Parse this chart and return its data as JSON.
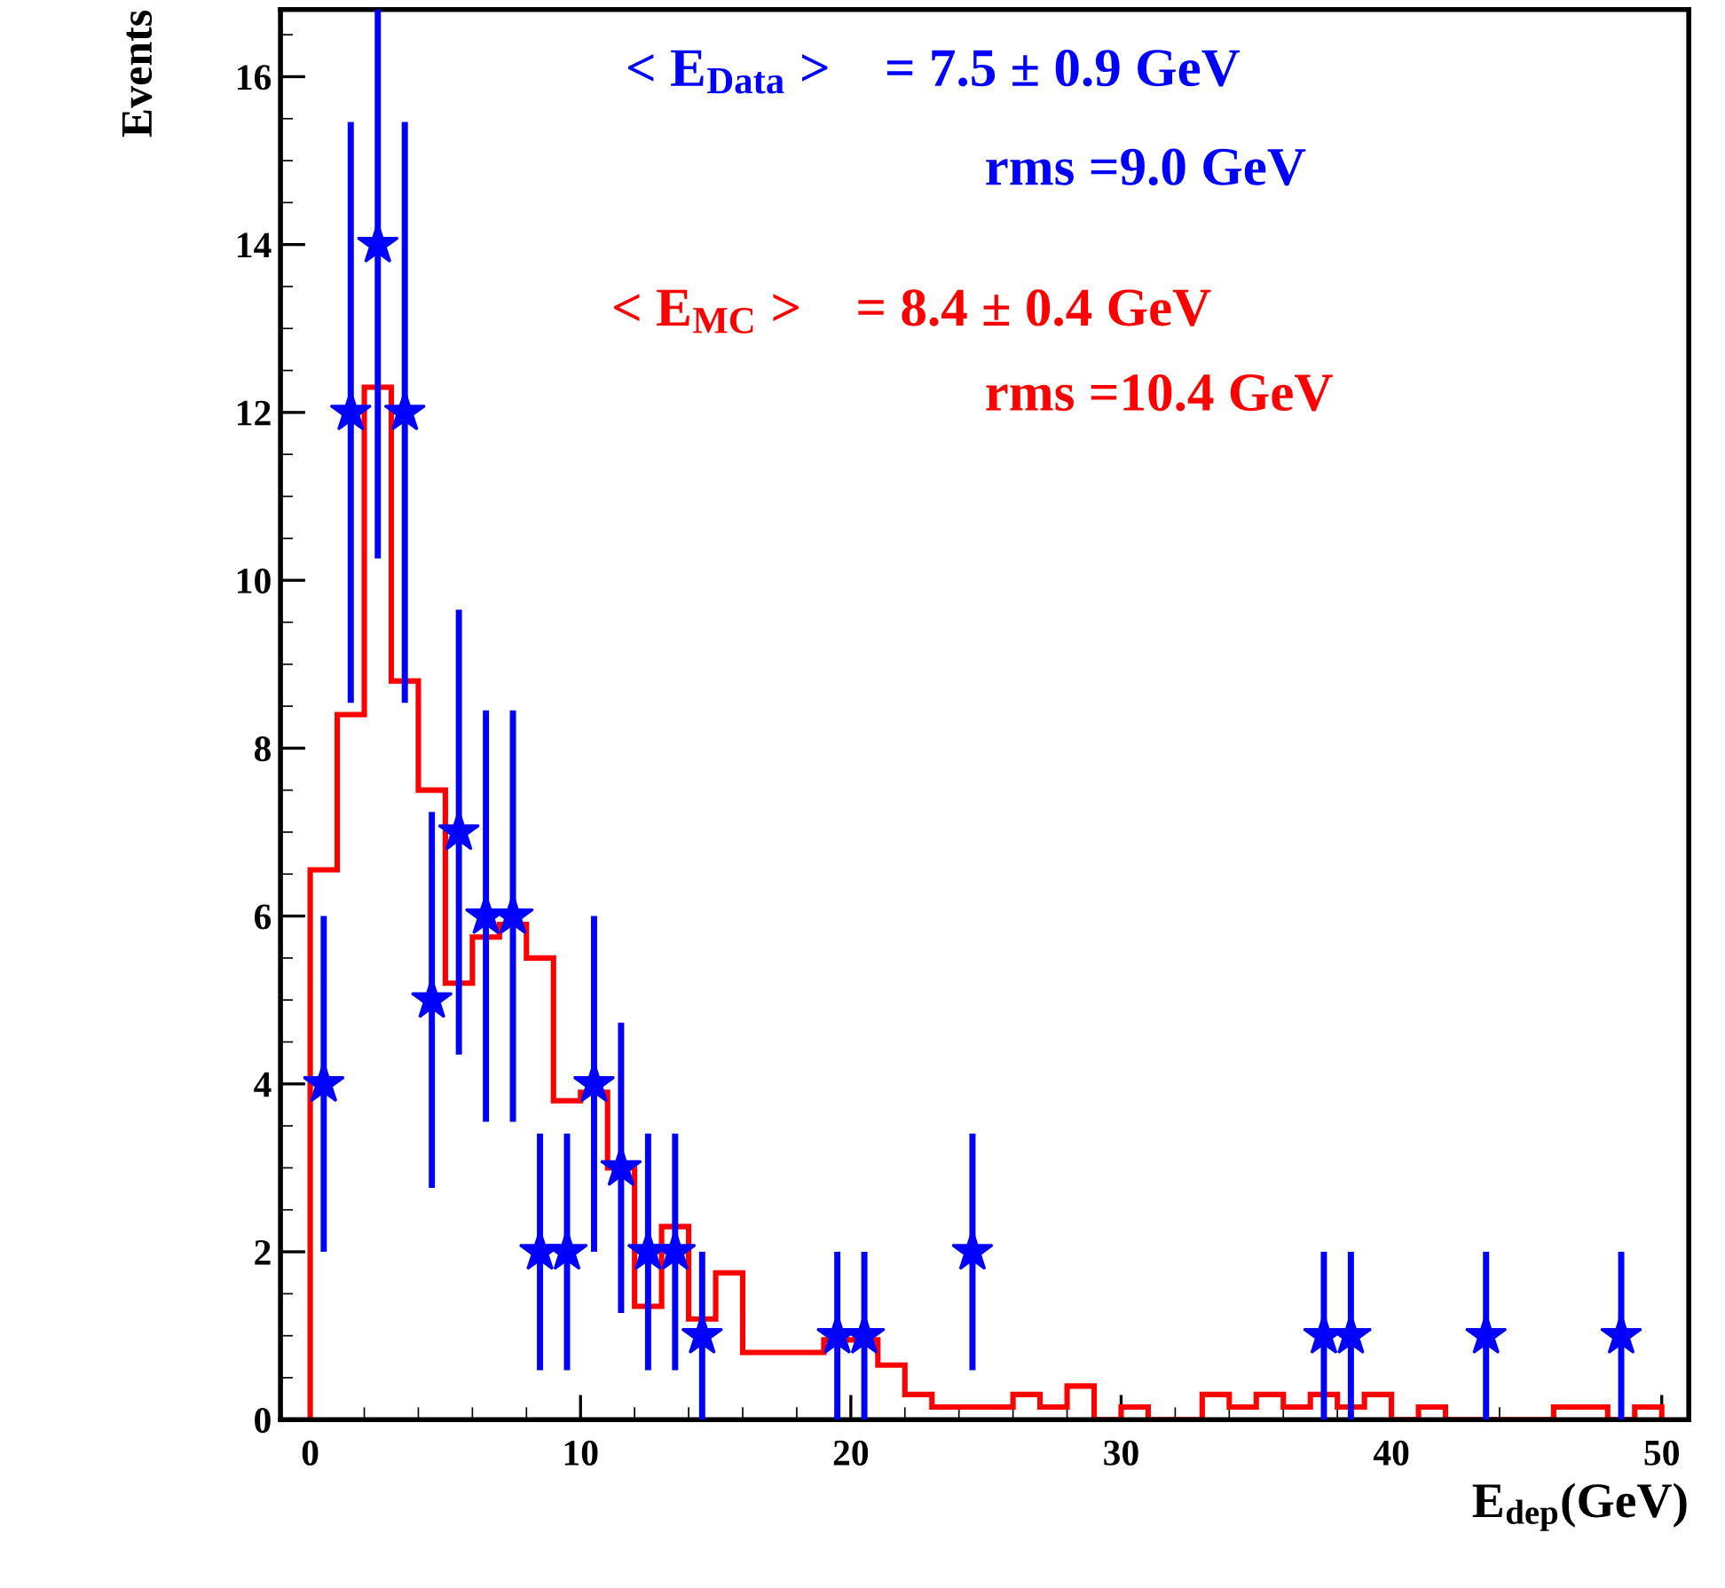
{
  "chart_data": {
    "type": "scatter",
    "xlabel": "E$_{dep}$(GeV)",
    "ylabel": "Events",
    "xlim": [
      -1.1,
      51
    ],
    "xticks": [
      0,
      10,
      20,
      30,
      40,
      50
    ],
    "ylim": [
      0,
      16.8
    ],
    "yticks": [
      0,
      2,
      4,
      6,
      8,
      10,
      12,
      14,
      16
    ],
    "marker": "star",
    "annotations": [
      "< E$_{Data}$ >    = 7.5 ± 0.9 GeV",
      "rms =9.0 GeV",
      "< E$_{MC}$ >    = 8.4 ± 0.4 GeV",
      "rms =10.4 GeV"
    ],
    "series": [
      {
        "color": "#0000ff",
        "x": [
          0.5,
          1.5,
          2.5,
          3.5,
          4.5,
          5.5,
          6.5,
          7.5,
          8.5,
          9.5,
          10.5,
          11.5,
          12.5,
          13.5,
          14.5,
          19.5,
          20.5,
          24.5,
          37.5,
          38.5,
          43.5,
          48.5
        ],
        "values": [
          4,
          12,
          14,
          12,
          5,
          7,
          6,
          6,
          2,
          2,
          4,
          3,
          2,
          2,
          1,
          1,
          1,
          2,
          1,
          1,
          1,
          1
        ],
        "errors": [
          2,
          3.46,
          [
            10.26,
            16.8
          ],
          3.46,
          2.24,
          2.65,
          2.45,
          2.45,
          1.41,
          1.41,
          2,
          1.73,
          1.41,
          1.41,
          1,
          1,
          1,
          1.41,
          1,
          1,
          1,
          1
        ]
      },
      {
        "type": "histogram",
        "color": "#ff0000",
        "bins": [
          0,
          1,
          2,
          3,
          4,
          5,
          6,
          7,
          8,
          9,
          10,
          11,
          12,
          13,
          14,
          15,
          16,
          17,
          18,
          19,
          20,
          21,
          22,
          23,
          24,
          25,
          26,
          27,
          28,
          29,
          30,
          31,
          32,
          33,
          34,
          35,
          36,
          37,
          38,
          39,
          40,
          41,
          42,
          43,
          44,
          45,
          46,
          47,
          48,
          49,
          50
        ],
        "values": [
          6.55,
          8.4,
          12.3,
          8.8,
          7.5,
          5.2,
          5.75,
          5.9,
          5.5,
          3.8,
          3.9,
          3.0,
          1.35,
          2.3,
          1.2,
          1.75,
          0.8,
          0.8,
          0.8,
          0.95,
          0.95,
          0.65,
          0.3,
          0.15,
          0.15,
          0.15,
          0.3,
          0.15,
          0.4,
          0,
          0.15,
          0,
          0,
          0.3,
          0.15,
          0.3,
          0.15,
          0.3,
          0.15,
          0.3,
          0,
          0.15,
          0,
          0,
          0,
          0,
          0.15,
          0.15,
          0,
          0.15
        ]
      }
    ]
  }
}
